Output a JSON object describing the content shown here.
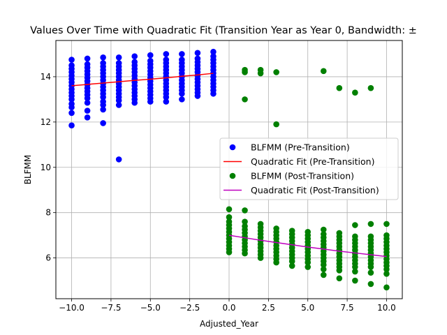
{
  "chart_data": {
    "type": "scatter",
    "title": "Values Over Time with Quadratic Fit (Transition Year as Year 0, Bandwidth: ±",
    "xlabel": "Adjusted_Year",
    "ylabel": "BLFMM",
    "xlim": [
      -11,
      11
    ],
    "ylim": [
      4.2,
      15.6
    ],
    "grid": true,
    "legend_position": "center-right",
    "x_ticks": [
      -10,
      -7.5,
      -5,
      -2.5,
      0,
      2.5,
      5,
      7.5,
      10
    ],
    "x_tick_labels": [
      "−10.0",
      "−7.5",
      "−5.0",
      "−2.5",
      "0.0",
      "2.5",
      "5.0",
      "7.5",
      "10.0"
    ],
    "y_ticks": [
      6,
      8,
      10,
      12,
      14
    ],
    "y_tick_labels": [
      "6",
      "8",
      "10",
      "12",
      "14"
    ],
    "colors": {
      "pre_scatter": "#0000ff",
      "pre_fit": "#ff0000",
      "post_scatter": "#008000",
      "post_fit": "#bf00bf"
    },
    "legend": [
      {
        "label": "BLFMM (Pre-Transition)",
        "kind": "marker",
        "color": "#0000ff"
      },
      {
        "label": "Quadratic Fit (Pre-Transition)",
        "kind": "line",
        "color": "#ff0000"
      },
      {
        "label": "BLFMM (Post-Transition)",
        "kind": "marker",
        "color": "#008000"
      },
      {
        "label": "Quadratic Fit (Post-Transition)",
        "kind": "line",
        "color": "#bf00bf"
      }
    ],
    "series": [
      {
        "name": "BLFMM (Pre-Transition)",
        "kind": "scatter",
        "color": "#0000ff",
        "points": [
          [
            -10,
            14.75
          ],
          [
            -10,
            14.5
          ],
          [
            -10,
            14.35
          ],
          [
            -10,
            14.2
          ],
          [
            -10,
            14.05
          ],
          [
            -10,
            13.9
          ],
          [
            -10,
            13.75
          ],
          [
            -10,
            13.6
          ],
          [
            -10,
            13.45
          ],
          [
            -10,
            13.3
          ],
          [
            -10,
            13.15
          ],
          [
            -10,
            13.0
          ],
          [
            -10,
            12.8
          ],
          [
            -10,
            12.65
          ],
          [
            -10,
            12.4
          ],
          [
            -10,
            11.85
          ],
          [
            -9,
            14.8
          ],
          [
            -9,
            14.55
          ],
          [
            -9,
            14.4
          ],
          [
            -9,
            14.25
          ],
          [
            -9,
            14.1
          ],
          [
            -9,
            13.95
          ],
          [
            -9,
            13.8
          ],
          [
            -9,
            13.65
          ],
          [
            -9,
            13.5
          ],
          [
            -9,
            13.35
          ],
          [
            -9,
            13.2
          ],
          [
            -9,
            13.05
          ],
          [
            -9,
            12.85
          ],
          [
            -9,
            12.5
          ],
          [
            -9,
            12.2
          ],
          [
            -8,
            14.85
          ],
          [
            -8,
            14.6
          ],
          [
            -8,
            14.45
          ],
          [
            -8,
            14.3
          ],
          [
            -8,
            14.15
          ],
          [
            -8,
            14.0
          ],
          [
            -8,
            13.85
          ],
          [
            -8,
            13.7
          ],
          [
            -8,
            13.55
          ],
          [
            -8,
            13.4
          ],
          [
            -8,
            13.25
          ],
          [
            -8,
            13.1
          ],
          [
            -8,
            12.9
          ],
          [
            -8,
            12.75
          ],
          [
            -8,
            12.55
          ],
          [
            -8,
            11.95
          ],
          [
            -7,
            14.85
          ],
          [
            -7,
            14.6
          ],
          [
            -7,
            14.45
          ],
          [
            -7,
            14.3
          ],
          [
            -7,
            14.15
          ],
          [
            -7,
            14.0
          ],
          [
            -7,
            13.85
          ],
          [
            -7,
            13.7
          ],
          [
            -7,
            13.55
          ],
          [
            -7,
            13.4
          ],
          [
            -7,
            13.25
          ],
          [
            -7,
            13.1
          ],
          [
            -7,
            12.95
          ],
          [
            -7,
            12.75
          ],
          [
            -7,
            10.35
          ],
          [
            -6,
            14.9
          ],
          [
            -6,
            14.65
          ],
          [
            -6,
            14.5
          ],
          [
            -6,
            14.35
          ],
          [
            -6,
            14.2
          ],
          [
            -6,
            14.05
          ],
          [
            -6,
            13.9
          ],
          [
            -6,
            13.75
          ],
          [
            -6,
            13.6
          ],
          [
            -6,
            13.45
          ],
          [
            -6,
            13.3
          ],
          [
            -6,
            13.15
          ],
          [
            -6,
            13.0
          ],
          [
            -6,
            12.85
          ],
          [
            -5,
            14.95
          ],
          [
            -5,
            14.7
          ],
          [
            -5,
            14.55
          ],
          [
            -5,
            14.4
          ],
          [
            -5,
            14.25
          ],
          [
            -5,
            14.1
          ],
          [
            -5,
            13.95
          ],
          [
            -5,
            13.8
          ],
          [
            -5,
            13.65
          ],
          [
            -5,
            13.5
          ],
          [
            -5,
            13.35
          ],
          [
            -5,
            13.2
          ],
          [
            -5,
            13.05
          ],
          [
            -5,
            12.9
          ],
          [
            -4,
            15.0
          ],
          [
            -4,
            14.75
          ],
          [
            -4,
            14.6
          ],
          [
            -4,
            14.45
          ],
          [
            -4,
            14.3
          ],
          [
            -4,
            14.15
          ],
          [
            -4,
            14.0
          ],
          [
            -4,
            13.85
          ],
          [
            -4,
            13.7
          ],
          [
            -4,
            13.55
          ],
          [
            -4,
            13.4
          ],
          [
            -4,
            13.25
          ],
          [
            -4,
            13.1
          ],
          [
            -4,
            12.9
          ],
          [
            -3,
            15.0
          ],
          [
            -3,
            14.75
          ],
          [
            -3,
            14.6
          ],
          [
            -3,
            14.45
          ],
          [
            -3,
            14.3
          ],
          [
            -3,
            14.15
          ],
          [
            -3,
            14.0
          ],
          [
            -3,
            13.85
          ],
          [
            -3,
            13.7
          ],
          [
            -3,
            13.55
          ],
          [
            -3,
            13.4
          ],
          [
            -3,
            13.25
          ],
          [
            -3,
            13.0
          ],
          [
            -2,
            15.05
          ],
          [
            -2,
            14.8
          ],
          [
            -2,
            14.65
          ],
          [
            -2,
            14.5
          ],
          [
            -2,
            14.35
          ],
          [
            -2,
            14.2
          ],
          [
            -2,
            14.05
          ],
          [
            -2,
            13.9
          ],
          [
            -2,
            13.75
          ],
          [
            -2,
            13.6
          ],
          [
            -2,
            13.45
          ],
          [
            -2,
            13.3
          ],
          [
            -2,
            13.15
          ],
          [
            -1,
            15.1
          ],
          [
            -1,
            14.9
          ],
          [
            -1,
            14.75
          ],
          [
            -1,
            14.6
          ],
          [
            -1,
            14.45
          ],
          [
            -1,
            14.3
          ],
          [
            -1,
            14.15
          ],
          [
            -1,
            14.0
          ],
          [
            -1,
            13.85
          ],
          [
            -1,
            13.7
          ],
          [
            -1,
            13.55
          ],
          [
            -1,
            13.4
          ],
          [
            -1,
            13.25
          ]
        ]
      },
      {
        "name": "Quadratic Fit (Pre-Transition)",
        "kind": "line",
        "color": "#ff0000",
        "x": [
          -10,
          -9,
          -8,
          -7,
          -6,
          -5,
          -4,
          -3,
          -2,
          -1
        ],
        "y": [
          13.6,
          13.66,
          13.72,
          13.78,
          13.84,
          13.89,
          13.95,
          14.02,
          14.08,
          14.15
        ]
      },
      {
        "name": "BLFMM (Post-Transition)",
        "kind": "scatter",
        "color": "#008000",
        "points": [
          [
            0,
            8.15
          ],
          [
            0,
            7.8
          ],
          [
            0,
            7.6
          ],
          [
            0,
            7.45
          ],
          [
            0,
            7.3
          ],
          [
            0,
            7.15
          ],
          [
            0,
            7.0
          ],
          [
            0,
            6.85
          ],
          [
            0,
            6.7
          ],
          [
            0,
            6.55
          ],
          [
            0,
            6.4
          ],
          [
            0,
            6.25
          ],
          [
            1,
            14.3
          ],
          [
            1,
            14.2
          ],
          [
            1,
            13.0
          ],
          [
            1,
            8.1
          ],
          [
            1,
            7.6
          ],
          [
            1,
            7.4
          ],
          [
            1,
            7.25
          ],
          [
            1,
            7.1
          ],
          [
            1,
            6.95
          ],
          [
            1,
            6.8
          ],
          [
            1,
            6.65
          ],
          [
            1,
            6.5
          ],
          [
            1,
            6.35
          ],
          [
            1,
            6.2
          ],
          [
            2,
            14.3
          ],
          [
            2,
            14.15
          ],
          [
            2,
            7.5
          ],
          [
            2,
            7.35
          ],
          [
            2,
            7.2
          ],
          [
            2,
            7.05
          ],
          [
            2,
            6.9
          ],
          [
            2,
            6.75
          ],
          [
            2,
            6.6
          ],
          [
            2,
            6.45
          ],
          [
            2,
            6.3
          ],
          [
            2,
            6.15
          ],
          [
            2,
            6.0
          ],
          [
            3,
            14.2
          ],
          [
            3,
            11.9
          ],
          [
            3,
            7.3
          ],
          [
            3,
            7.15
          ],
          [
            3,
            7.0
          ],
          [
            3,
            6.85
          ],
          [
            3,
            6.7
          ],
          [
            3,
            6.55
          ],
          [
            3,
            6.4
          ],
          [
            3,
            6.25
          ],
          [
            3,
            6.1
          ],
          [
            3,
            5.95
          ],
          [
            3,
            5.8
          ],
          [
            4,
            7.2
          ],
          [
            4,
            7.05
          ],
          [
            4,
            6.9
          ],
          [
            4,
            6.75
          ],
          [
            4,
            6.6
          ],
          [
            4,
            6.45
          ],
          [
            4,
            6.3
          ],
          [
            4,
            6.15
          ],
          [
            4,
            6.0
          ],
          [
            4,
            5.85
          ],
          [
            4,
            5.65
          ],
          [
            5,
            7.15
          ],
          [
            5,
            7.0
          ],
          [
            5,
            6.85
          ],
          [
            5,
            6.7
          ],
          [
            5,
            6.55
          ],
          [
            5,
            6.4
          ],
          [
            5,
            6.25
          ],
          [
            5,
            6.1
          ],
          [
            5,
            5.95
          ],
          [
            5,
            5.8
          ],
          [
            5,
            5.6
          ],
          [
            6,
            14.25
          ],
          [
            6,
            7.25
          ],
          [
            6,
            7.05
          ],
          [
            6,
            6.9
          ],
          [
            6,
            6.75
          ],
          [
            6,
            6.6
          ],
          [
            6,
            6.45
          ],
          [
            6,
            6.3
          ],
          [
            6,
            6.15
          ],
          [
            6,
            6.0
          ],
          [
            6,
            5.85
          ],
          [
            6,
            5.7
          ],
          [
            6,
            5.5
          ],
          [
            6,
            5.25
          ],
          [
            7,
            13.5
          ],
          [
            7,
            7.1
          ],
          [
            7,
            6.95
          ],
          [
            7,
            6.8
          ],
          [
            7,
            6.65
          ],
          [
            7,
            6.5
          ],
          [
            7,
            6.35
          ],
          [
            7,
            6.2
          ],
          [
            7,
            6.05
          ],
          [
            7,
            5.9
          ],
          [
            7,
            5.75
          ],
          [
            7,
            5.6
          ],
          [
            7,
            5.45
          ],
          [
            7,
            5.1
          ],
          [
            8,
            13.3
          ],
          [
            8,
            7.45
          ],
          [
            8,
            6.95
          ],
          [
            8,
            6.8
          ],
          [
            8,
            6.65
          ],
          [
            8,
            6.5
          ],
          [
            8,
            6.35
          ],
          [
            8,
            6.2
          ],
          [
            8,
            6.05
          ],
          [
            8,
            5.9
          ],
          [
            8,
            5.75
          ],
          [
            8,
            5.6
          ],
          [
            8,
            5.4
          ],
          [
            8,
            5.0
          ],
          [
            9,
            13.5
          ],
          [
            9,
            7.5
          ],
          [
            9,
            6.95
          ],
          [
            9,
            6.8
          ],
          [
            9,
            6.65
          ],
          [
            9,
            6.5
          ],
          [
            9,
            6.35
          ],
          [
            9,
            6.2
          ],
          [
            9,
            6.05
          ],
          [
            9,
            5.9
          ],
          [
            9,
            5.75
          ],
          [
            9,
            5.6
          ],
          [
            9,
            5.35
          ],
          [
            9,
            4.85
          ],
          [
            10,
            7.5
          ],
          [
            10,
            7.0
          ],
          [
            10,
            6.85
          ],
          [
            10,
            6.7
          ],
          [
            10,
            6.55
          ],
          [
            10,
            6.4
          ],
          [
            10,
            6.25
          ],
          [
            10,
            6.1
          ],
          [
            10,
            5.95
          ],
          [
            10,
            5.8
          ],
          [
            10,
            5.65
          ],
          [
            10,
            5.5
          ],
          [
            10,
            5.3
          ],
          [
            10,
            4.7
          ]
        ]
      },
      {
        "name": "Quadratic Fit (Post-Transition)",
        "kind": "line",
        "color": "#bf00bf",
        "x": [
          0,
          1,
          2,
          3,
          4,
          5,
          6,
          7,
          8,
          9,
          10
        ],
        "y": [
          7.0,
          6.89,
          6.78,
          6.68,
          6.58,
          6.48,
          6.39,
          6.3,
          6.22,
          6.14,
          6.06
        ]
      }
    ]
  }
}
